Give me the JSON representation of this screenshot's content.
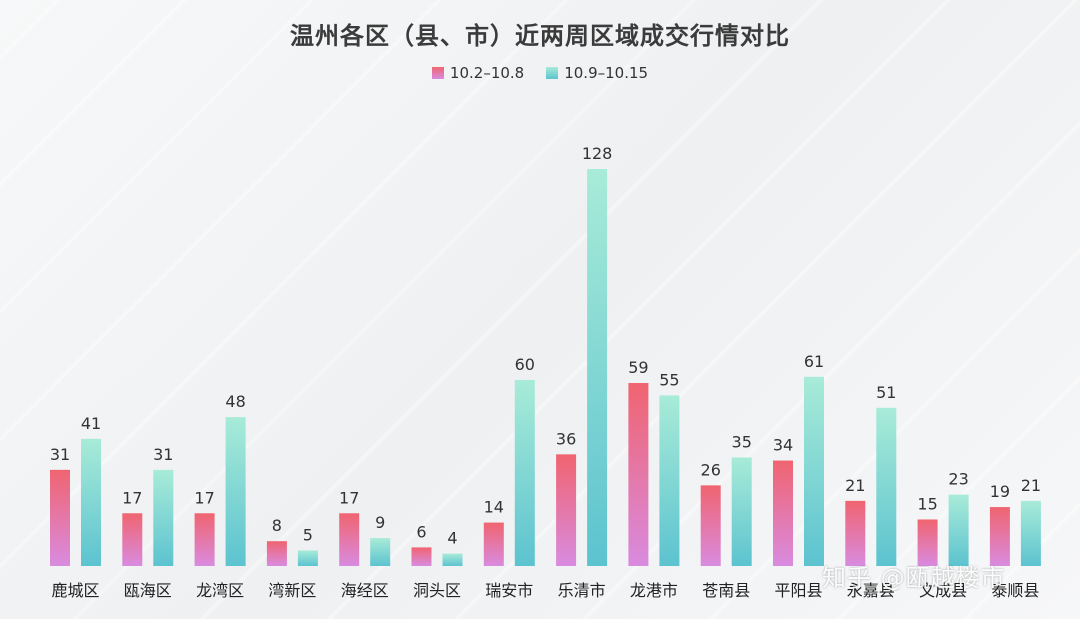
{
  "chart_data": {
    "type": "bar",
    "title": "温州各区（县、市）近两周区域成交行情对比",
    "categories": [
      "鹿城区",
      "瓯海区",
      "龙湾区",
      "湾新区",
      "海经区",
      "洞头区",
      "瑞安市",
      "乐清市",
      "龙港市",
      "苍南县",
      "平阳县",
      "永嘉县",
      "文成县",
      "泰顺县"
    ],
    "series": [
      {
        "name": "10.2–10.8",
        "values": [
          31,
          17,
          17,
          8,
          17,
          6,
          14,
          36,
          59,
          26,
          34,
          21,
          15,
          19
        ]
      },
      {
        "name": "10.9–10.15",
        "values": [
          41,
          31,
          48,
          5,
          9,
          4,
          60,
          128,
          55,
          35,
          61,
          51,
          23,
          21
        ]
      }
    ],
    "xlabel": "",
    "ylabel": "",
    "ylim": [
      0,
      128
    ],
    "grid": false,
    "legend_position": "top-center",
    "colors": {
      "series1_top": "#f06470",
      "series1_bottom": "#d98be0",
      "series2_top": "#a8ebd8",
      "series2_bottom": "#5cc3cf"
    }
  },
  "watermark": "知乎 @瓯越楼市"
}
